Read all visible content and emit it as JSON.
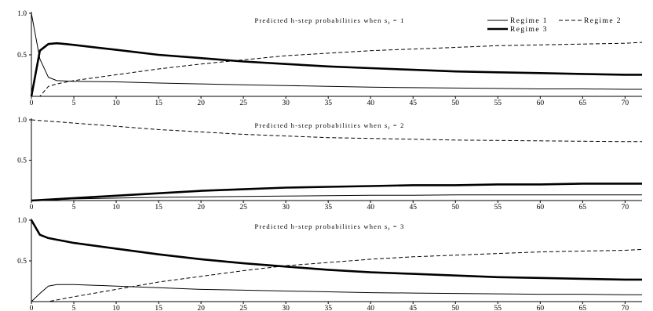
{
  "chart_data": [
    {
      "type": "line",
      "title": "Predicted h-step probabilities when s_t = 1",
      "title_prefix": "Predicted h-step probabilities when ",
      "title_var": "s",
      "title_sub": "t",
      "title_suffix": " = 1",
      "xlim": [
        0,
        72
      ],
      "ylim": [
        0,
        1
      ],
      "xticks": [
        0,
        5,
        10,
        15,
        20,
        25,
        30,
        35,
        40,
        45,
        50,
        55,
        60,
        65,
        70
      ],
      "yticks": [
        "0.5",
        "1.0"
      ],
      "yticks_values": [
        0.5,
        1.0
      ],
      "legend": {
        "position": "top-right",
        "entries": [
          "Regime 1",
          "Regime 2",
          "Regime 3"
        ]
      },
      "series": [
        {
          "name": "Regime 1",
          "style": "thin-solid",
          "x": [
            0,
            1,
            2,
            3,
            4,
            5,
            10,
            15,
            20,
            25,
            30,
            35,
            40,
            45,
            50,
            55,
            60,
            65,
            70,
            72
          ],
          "y": [
            1.0,
            0.45,
            0.23,
            0.19,
            0.185,
            0.18,
            0.175,
            0.16,
            0.15,
            0.14,
            0.13,
            0.12,
            0.11,
            0.105,
            0.1,
            0.095,
            0.09,
            0.09,
            0.085,
            0.085
          ]
        },
        {
          "name": "Regime 2",
          "style": "dashed",
          "x": [
            0,
            1,
            2,
            3,
            4,
            5,
            10,
            15,
            20,
            25,
            30,
            35,
            40,
            45,
            50,
            55,
            60,
            65,
            70,
            72
          ],
          "y": [
            0.0,
            0.0,
            0.12,
            0.15,
            0.17,
            0.19,
            0.26,
            0.33,
            0.39,
            0.44,
            0.49,
            0.52,
            0.55,
            0.57,
            0.59,
            0.61,
            0.62,
            0.63,
            0.64,
            0.65
          ]
        },
        {
          "name": "Regime 3",
          "style": "thick-solid",
          "x": [
            0,
            1,
            2,
            3,
            4,
            5,
            10,
            15,
            20,
            25,
            30,
            35,
            40,
            45,
            50,
            55,
            60,
            65,
            70,
            72
          ],
          "y": [
            0.0,
            0.55,
            0.63,
            0.64,
            0.63,
            0.62,
            0.56,
            0.5,
            0.46,
            0.42,
            0.39,
            0.36,
            0.34,
            0.32,
            0.3,
            0.29,
            0.28,
            0.27,
            0.26,
            0.26
          ]
        }
      ]
    },
    {
      "type": "line",
      "title": "Predicted h-step probabilities when s_t = 2",
      "title_prefix": "Predicted h-step probabilities when ",
      "title_var": "s",
      "title_sub": "t",
      "title_suffix": " = 2",
      "xlim": [
        0,
        72
      ],
      "ylim": [
        0,
        1
      ],
      "xticks": [
        0,
        5,
        10,
        15,
        20,
        25,
        30,
        35,
        40,
        45,
        50,
        55,
        60,
        65,
        70
      ],
      "yticks": [
        "0.5",
        "1.0"
      ],
      "yticks_values": [
        0.5,
        1.0
      ],
      "series": [
        {
          "name": "Regime 1",
          "style": "thin-solid",
          "x": [
            0,
            5,
            10,
            15,
            20,
            25,
            30,
            35,
            40,
            45,
            50,
            55,
            60,
            65,
            70,
            72
          ],
          "y": [
            0.0,
            0.02,
            0.03,
            0.04,
            0.045,
            0.05,
            0.055,
            0.06,
            0.065,
            0.065,
            0.07,
            0.07,
            0.07,
            0.07,
            0.07,
            0.07
          ]
        },
        {
          "name": "Regime 2",
          "style": "dashed",
          "x": [
            0,
            5,
            10,
            15,
            20,
            25,
            30,
            35,
            40,
            45,
            50,
            55,
            60,
            65,
            70,
            72
          ],
          "y": [
            1.0,
            0.96,
            0.92,
            0.88,
            0.85,
            0.82,
            0.8,
            0.78,
            0.77,
            0.76,
            0.75,
            0.745,
            0.74,
            0.735,
            0.73,
            0.73
          ]
        },
        {
          "name": "Regime 3",
          "style": "thick-solid",
          "x": [
            0,
            5,
            10,
            15,
            20,
            25,
            30,
            35,
            40,
            45,
            50,
            55,
            60,
            65,
            70,
            72
          ],
          "y": [
            0.0,
            0.03,
            0.06,
            0.09,
            0.12,
            0.14,
            0.16,
            0.17,
            0.18,
            0.19,
            0.19,
            0.2,
            0.2,
            0.21,
            0.21,
            0.21
          ]
        }
      ]
    },
    {
      "type": "line",
      "title": "Predicted h-step probabilities when s_t = 3",
      "title_prefix": "Predicted h-step probabilities when ",
      "title_var": "s",
      "title_sub": "t",
      "title_suffix": " = 3",
      "xlim": [
        0,
        72
      ],
      "ylim": [
        0,
        1
      ],
      "xticks": [
        0,
        5,
        10,
        15,
        20,
        25,
        30,
        35,
        40,
        45,
        50,
        55,
        60,
        65,
        70
      ],
      "yticks": [
        "0.5",
        "1.0"
      ],
      "yticks_values": [
        0.5,
        1.0
      ],
      "series": [
        {
          "name": "Regime 1",
          "style": "thin-solid",
          "x": [
            0,
            1,
            2,
            3,
            4,
            5,
            10,
            15,
            20,
            25,
            30,
            35,
            40,
            45,
            50,
            55,
            60,
            65,
            70,
            72
          ],
          "y": [
            0.0,
            0.1,
            0.19,
            0.21,
            0.21,
            0.21,
            0.19,
            0.17,
            0.15,
            0.14,
            0.13,
            0.12,
            0.11,
            0.105,
            0.1,
            0.095,
            0.09,
            0.09,
            0.085,
            0.085
          ]
        },
        {
          "name": "Regime 2",
          "style": "dashed",
          "x": [
            0,
            1,
            2,
            3,
            4,
            5,
            10,
            15,
            20,
            25,
            30,
            35,
            40,
            45,
            50,
            55,
            60,
            65,
            70,
            72
          ],
          "y": [
            0.0,
            0.0,
            0.0,
            0.02,
            0.04,
            0.06,
            0.15,
            0.24,
            0.31,
            0.38,
            0.44,
            0.48,
            0.52,
            0.55,
            0.57,
            0.59,
            0.61,
            0.62,
            0.63,
            0.64
          ]
        },
        {
          "name": "Regime 3",
          "style": "thick-solid",
          "x": [
            0,
            1,
            2,
            3,
            4,
            5,
            10,
            15,
            20,
            25,
            30,
            35,
            40,
            45,
            50,
            55,
            60,
            65,
            70,
            72
          ],
          "y": [
            1.0,
            0.82,
            0.78,
            0.76,
            0.74,
            0.72,
            0.65,
            0.58,
            0.52,
            0.47,
            0.43,
            0.39,
            0.36,
            0.34,
            0.32,
            0.3,
            0.29,
            0.28,
            0.27,
            0.27
          ]
        }
      ]
    }
  ]
}
